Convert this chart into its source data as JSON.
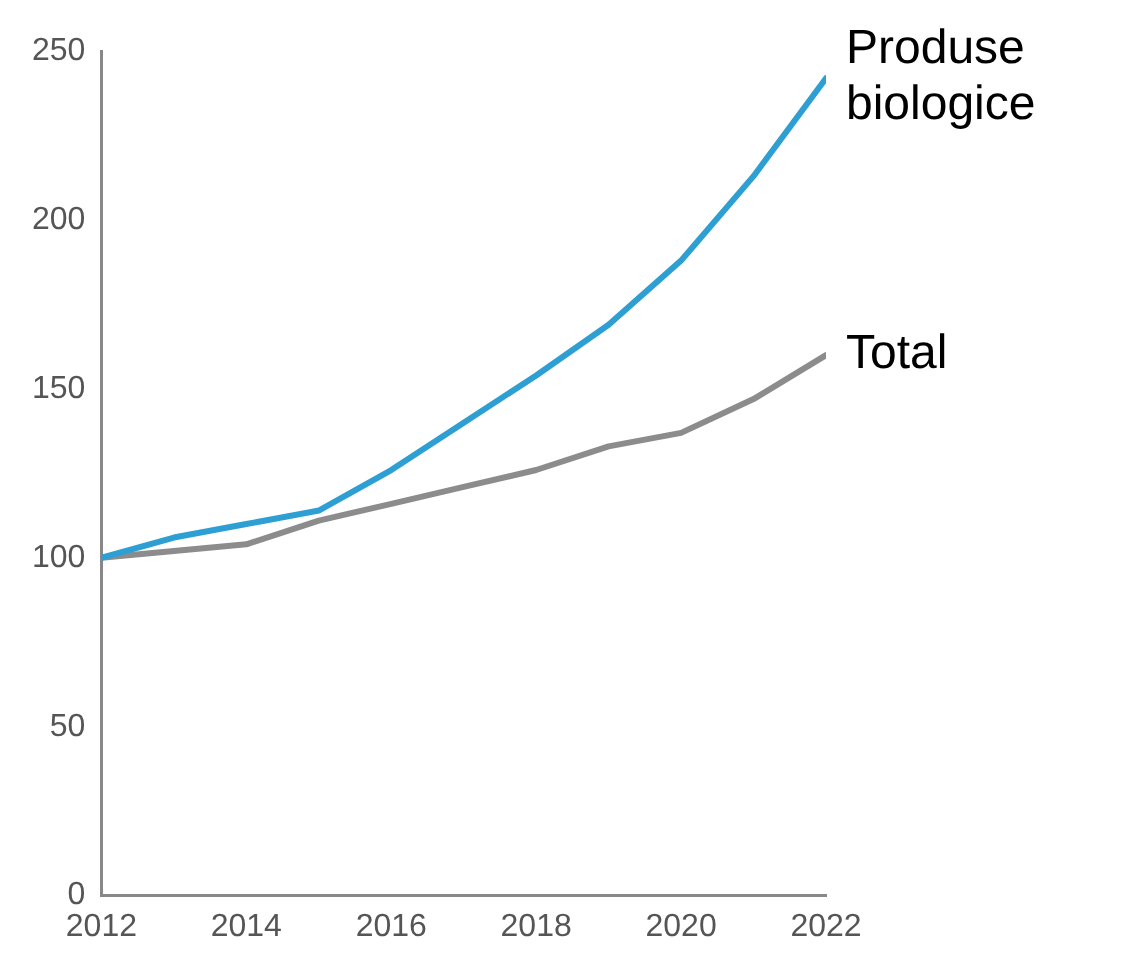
{
  "chart_data": {
    "type": "line",
    "x": [
      2012,
      2013,
      2014,
      2015,
      2016,
      2017,
      2018,
      2019,
      2020,
      2021,
      2022
    ],
    "series": [
      {
        "name": "Produse biologice",
        "color": "#2e9fd3",
        "values": [
          100,
          106,
          110,
          114,
          126,
          140,
          154,
          169,
          188,
          213,
          242
        ]
      },
      {
        "name": "Total",
        "color": "#8c8c8c",
        "values": [
          100,
          102,
          104,
          111,
          116,
          121,
          126,
          133,
          137,
          147,
          160
        ]
      }
    ],
    "xlim": [
      2012,
      2022
    ],
    "xticks": [
      2012,
      2014,
      2016,
      2018,
      2020,
      2022
    ],
    "ylim": [
      0,
      250
    ],
    "yticks": [
      0,
      50,
      100,
      150,
      200,
      250
    ],
    "grid": false,
    "legend": false,
    "marker": "none",
    "line_style": "solid"
  }
}
